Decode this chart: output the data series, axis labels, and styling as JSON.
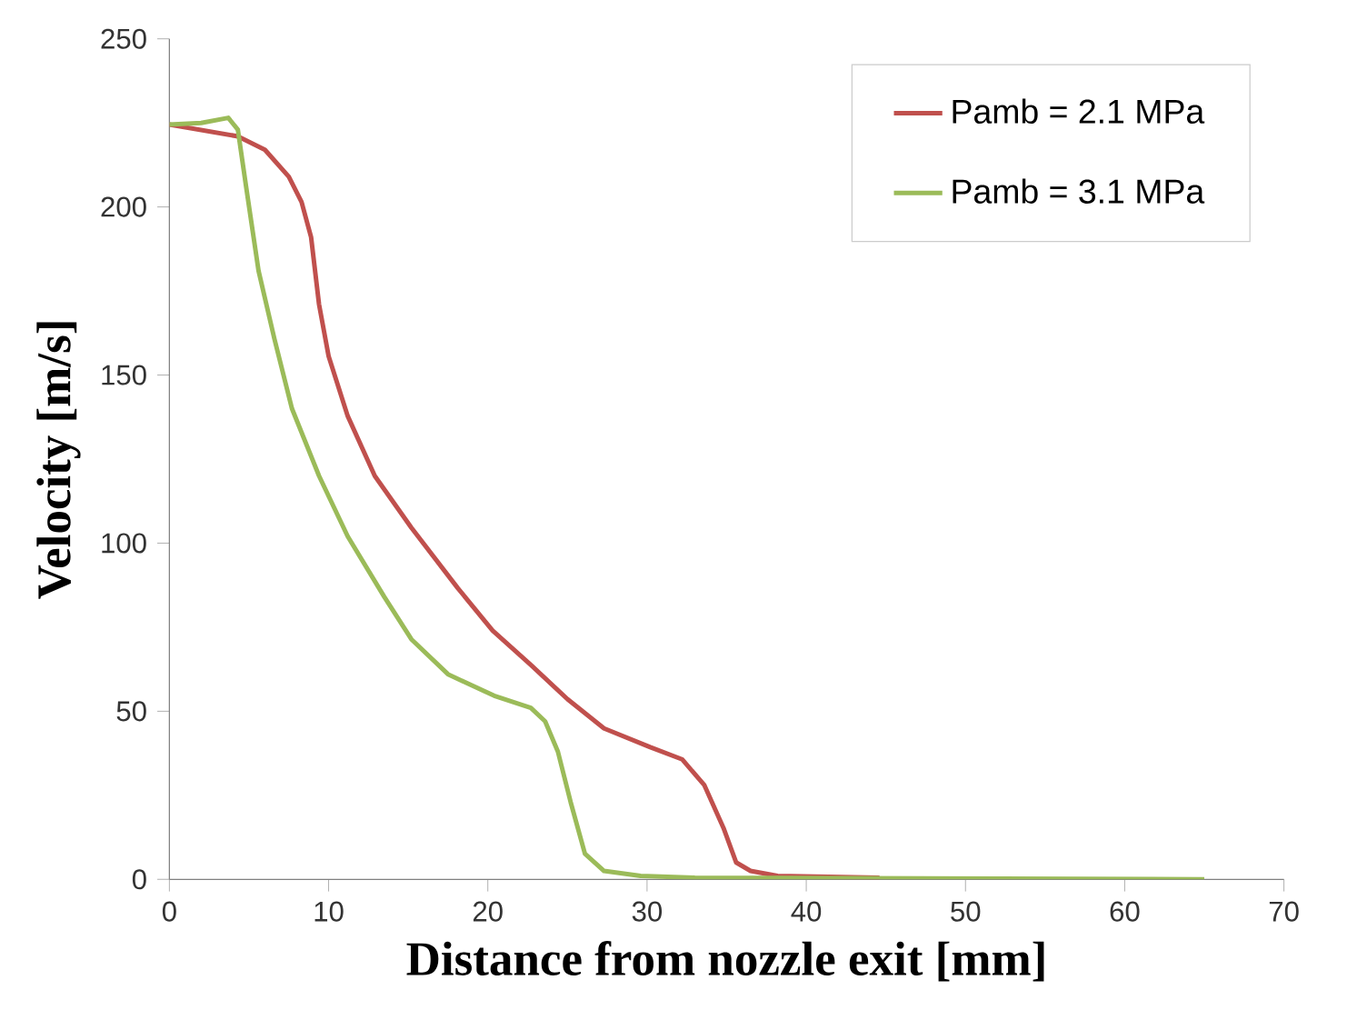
{
  "chart_data": {
    "type": "line",
    "xlabel": "Distance from nozzle exit [mm]",
    "ylabel": "Velocity [m/s]",
    "xlim": [
      0,
      70
    ],
    "ylim": [
      0,
      250
    ],
    "xticks": [
      0,
      10,
      20,
      30,
      40,
      50,
      60,
      70
    ],
    "yticks": [
      0,
      50,
      100,
      150,
      200,
      250
    ],
    "legend": "top right",
    "grid": false,
    "marker": "none",
    "line_style": "solid",
    "series": [
      {
        "name": "Pamb = 2.1 MPa",
        "color": "#c0504d",
        "x": [
          0,
          4.3,
          6,
          7.5,
          8.3,
          8.9,
          9.4,
          10,
          11.2,
          12.9,
          15.2,
          18.1,
          20.3,
          22.7,
          25,
          27.3,
          30.2,
          32.2,
          33.6,
          34.8,
          35.6,
          36.5,
          38.2,
          44.6
        ],
        "values": [
          224.5,
          221,
          217,
          209,
          201.5,
          191,
          171,
          155.6,
          137.8,
          120,
          104.6,
          86.7,
          74,
          63.8,
          53.6,
          44.9,
          39.3,
          35.7,
          28,
          15.3,
          5,
          2.5,
          1,
          0.5
        ]
      },
      {
        "name": "Pamb = 3.1 MPa",
        "color": "#9bbb59",
        "x": [
          0,
          2,
          3.7,
          4.3,
          4.8,
          5.6,
          6.6,
          7.7,
          9.4,
          11.2,
          13.5,
          15.2,
          17.5,
          20.4,
          22.7,
          23.6,
          24.4,
          25.2,
          26.1,
          27.3,
          29.6,
          33,
          65
        ],
        "values": [
          224.5,
          225,
          226.5,
          223,
          206.6,
          181,
          160.7,
          140,
          120,
          102,
          84,
          71.4,
          61,
          54.6,
          51,
          47,
          38,
          23,
          7.6,
          2.5,
          1,
          0.5,
          0
        ]
      }
    ]
  }
}
